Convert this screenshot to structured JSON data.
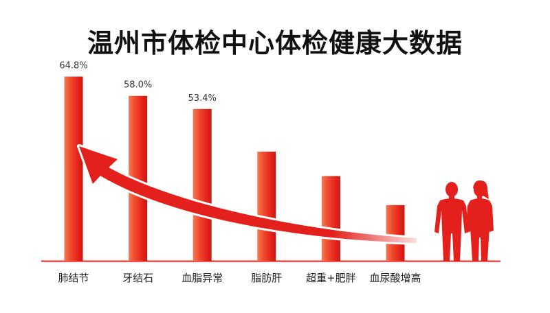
{
  "chart_data": {
    "type": "bar",
    "title": "温州市体检中心体检健康大数据",
    "categories": [
      "肺结节",
      "牙结石",
      "血脂异常",
      "脂肪肝",
      "超重+肥胖",
      "血尿酸增高"
    ],
    "values": [
      64.8,
      58.0,
      53.4,
      38.4,
      29.8,
      19.6
    ],
    "value_labels": [
      "64.8%",
      "58.0%",
      "53.4%",
      "",
      "",
      ""
    ],
    "unit": "%",
    "ylim": [
      0,
      70
    ],
    "grid": false,
    "legend": "none",
    "colors": {
      "bar_main": "#e8261e",
      "bar_highlight": "#f07a52",
      "bar_shadow": "#c81810",
      "arrow": "#e3201b",
      "baseline": "#e3201b",
      "figures": "#e3201b"
    },
    "decorations": [
      "rising-arrow",
      "human-figures-icon"
    ]
  }
}
